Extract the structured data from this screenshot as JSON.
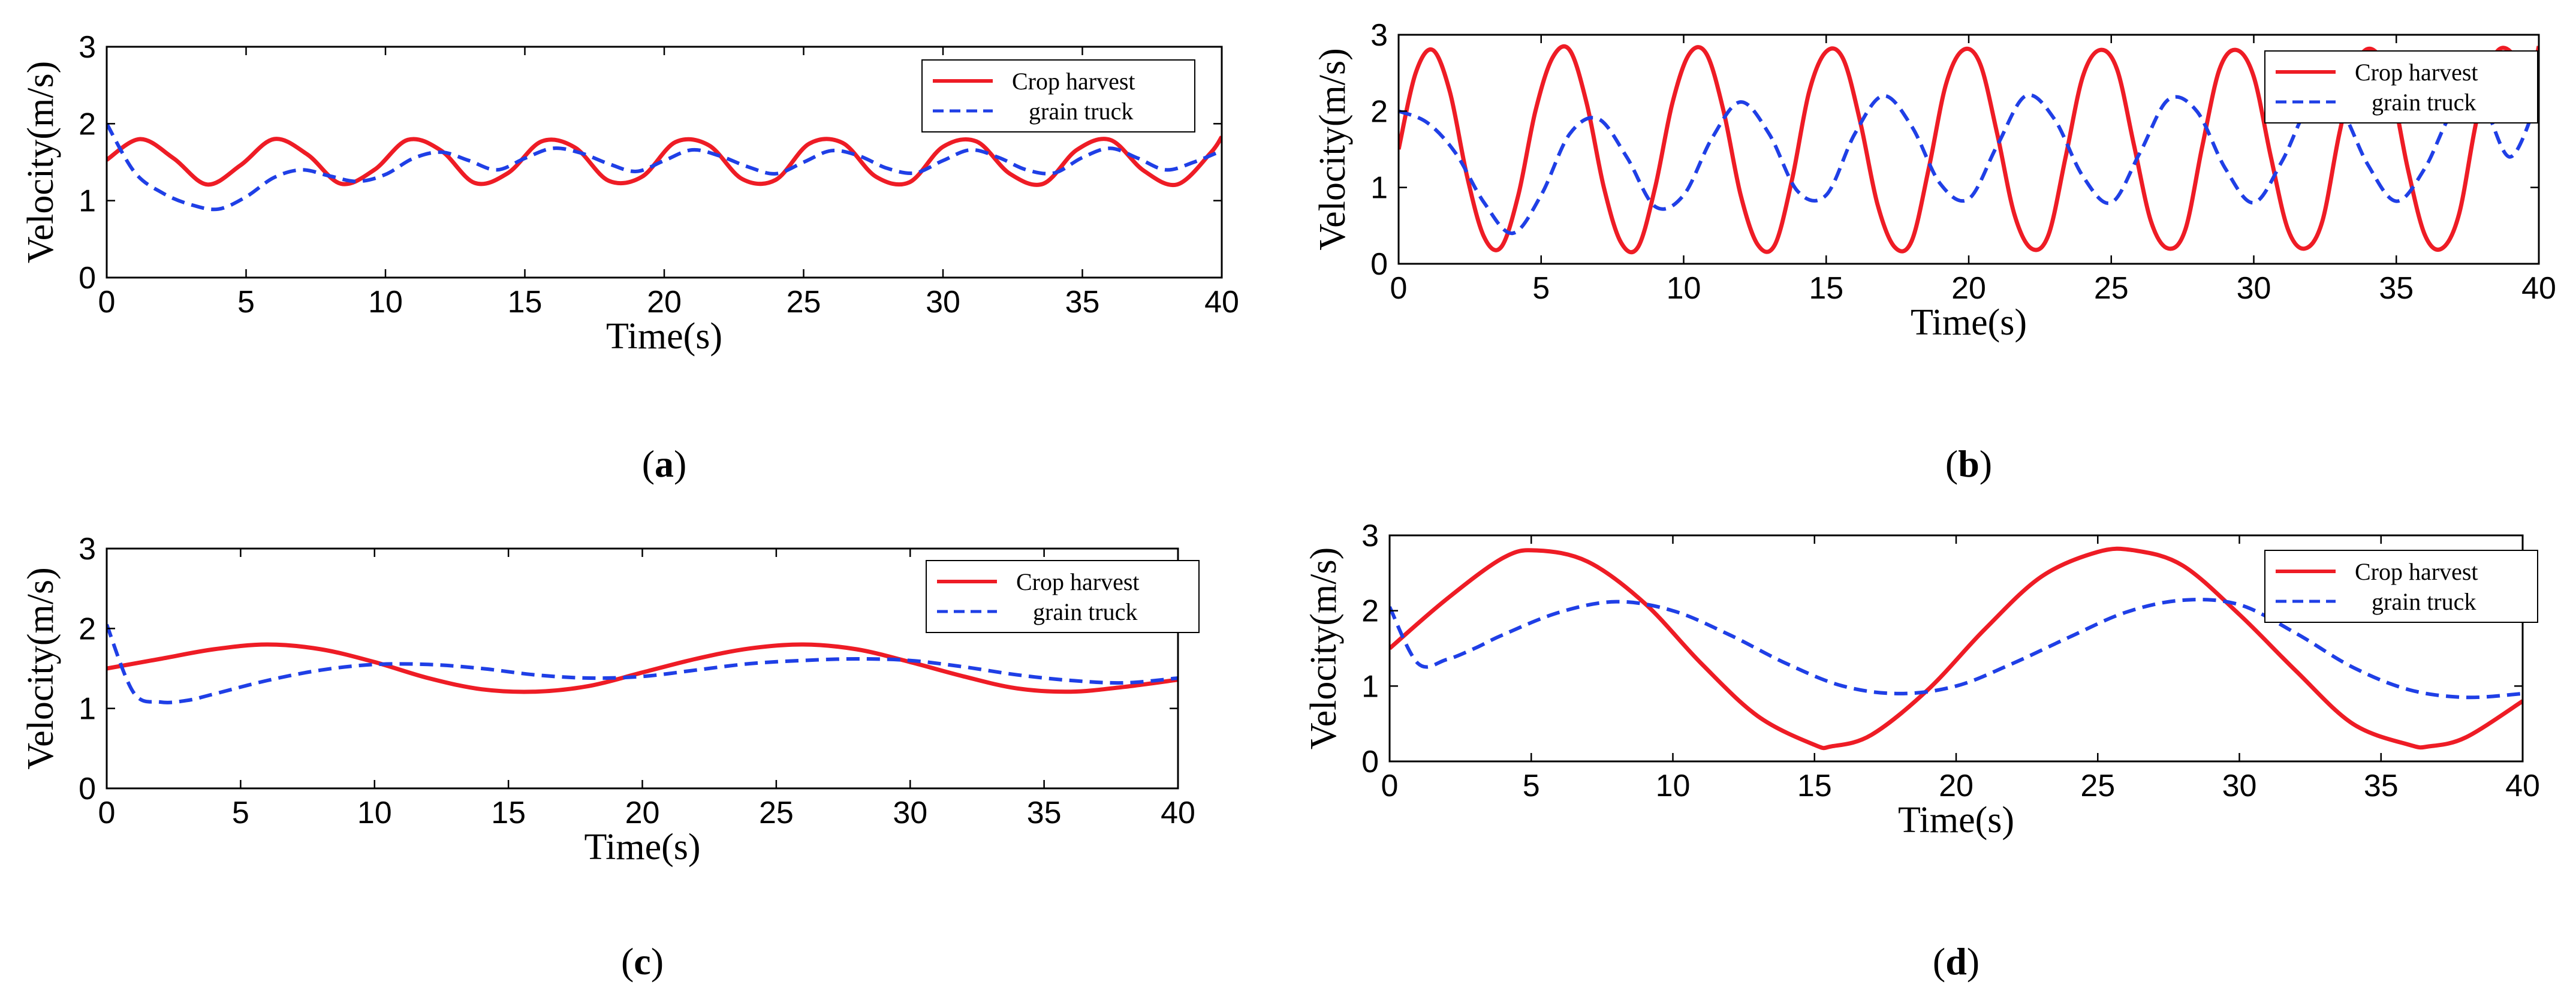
{
  "colors": {
    "crop": "#ee1c25",
    "truck": "#1f3fe6",
    "axis": "#000000"
  },
  "chart_data": [
    {
      "type": "line",
      "caption_letter": "a",
      "xlabel": "Time(s)",
      "ylabel": "Velocity(m/s)",
      "xlim": [
        0,
        40
      ],
      "ylim": [
        0,
        3
      ],
      "xticks": [
        0,
        5,
        10,
        15,
        20,
        25,
        30,
        35,
        40
      ],
      "yticks": [
        0,
        1,
        2,
        3
      ],
      "legend_position": "top-right",
      "series": [
        {
          "name": "Crop harvest",
          "x": [
            0,
            1.2,
            2.4,
            3.6,
            4.8,
            6.0,
            7.2,
            8.4,
            9.6,
            10.8,
            12.0,
            13.2,
            14.4,
            15.6,
            16.8,
            18.0,
            19.2,
            20.4,
            21.6,
            22.8,
            24.0,
            25.2,
            26.4,
            27.6,
            28.8,
            30.0,
            31.2,
            32.4,
            33.6,
            34.8,
            36.0,
            37.2,
            38.4,
            39.6,
            40
          ],
          "y": [
            1.53,
            1.8,
            1.55,
            1.21,
            1.46,
            1.8,
            1.6,
            1.22,
            1.4,
            1.79,
            1.65,
            1.23,
            1.36,
            1.77,
            1.69,
            1.26,
            1.31,
            1.76,
            1.72,
            1.28,
            1.27,
            1.74,
            1.75,
            1.31,
            1.24,
            1.7,
            1.77,
            1.35,
            1.22,
            1.66,
            1.79,
            1.39,
            1.21,
            1.62,
            1.83
          ]
        },
        {
          "name": "grain truck",
          "x": [
            0,
            1,
            2,
            3,
            4,
            5,
            6,
            7,
            8,
            9,
            10,
            11,
            12,
            13,
            14,
            15,
            16,
            17,
            18,
            19,
            20,
            21,
            22,
            23,
            24,
            25,
            26,
            27,
            28,
            29,
            30,
            31,
            32,
            33,
            34,
            35,
            36,
            37,
            38,
            39,
            40
          ],
          "y": [
            2.0,
            1.37,
            1.1,
            0.95,
            0.89,
            1.05,
            1.3,
            1.4,
            1.32,
            1.25,
            1.34,
            1.55,
            1.63,
            1.52,
            1.4,
            1.55,
            1.68,
            1.62,
            1.48,
            1.38,
            1.52,
            1.66,
            1.58,
            1.44,
            1.35,
            1.5,
            1.65,
            1.58,
            1.42,
            1.36,
            1.52,
            1.66,
            1.56,
            1.4,
            1.36,
            1.56,
            1.68,
            1.55,
            1.4,
            1.5,
            1.65
          ]
        }
      ]
    },
    {
      "type": "line",
      "caption_letter": "b",
      "xlabel": "Time(s)",
      "ylabel": "Velocity(m/s)",
      "xlim": [
        0,
        40
      ],
      "ylim": [
        0,
        3
      ],
      "xticks": [
        0,
        5,
        10,
        15,
        20,
        25,
        30,
        35,
        40
      ],
      "yticks": [
        0,
        1,
        2,
        3
      ],
      "legend_position": "top-right",
      "series": [
        {
          "name": "Crop harvest",
          "x": [
            0,
            0.6,
            1.2,
            1.8,
            2.4,
            3.0,
            3.6,
            4.2,
            4.8,
            5.4,
            6.0,
            6.6,
            7.2,
            7.8,
            8.4,
            9.0,
            9.6,
            10.2,
            10.8,
            11.4,
            12.0,
            12.6,
            13.2,
            13.8,
            14.4,
            15.0,
            15.6,
            16.2,
            16.8,
            17.4,
            18.0,
            18.6,
            19.2,
            19.8,
            20.4,
            21.0,
            21.6,
            22.2,
            22.8,
            23.4,
            24.0,
            24.6,
            25.2,
            25.8,
            26.4,
            27.0,
            27.6,
            28.2,
            28.8,
            29.4,
            30.0,
            30.6,
            31.2,
            31.8,
            32.4,
            33.0,
            33.6,
            34.2,
            34.8,
            35.4,
            36.0,
            36.6,
            37.2,
            37.8,
            38.4,
            39.0,
            39.6,
            40
          ],
          "y": [
            1.5,
            2.5,
            2.8,
            2.25,
            1.15,
            0.35,
            0.22,
            0.9,
            2.0,
            2.7,
            2.8,
            2.1,
            1.0,
            0.28,
            0.22,
            1.0,
            2.1,
            2.75,
            2.75,
            2.0,
            0.9,
            0.25,
            0.25,
            1.1,
            2.25,
            2.78,
            2.68,
            1.85,
            0.78,
            0.22,
            0.3,
            1.25,
            2.35,
            2.8,
            2.62,
            1.7,
            0.65,
            0.2,
            0.38,
            1.4,
            2.45,
            2.8,
            2.55,
            1.55,
            0.55,
            0.2,
            0.45,
            1.55,
            2.55,
            2.8,
            2.45,
            1.4,
            0.45,
            0.2,
            0.55,
            1.7,
            2.62,
            2.8,
            2.35,
            1.25,
            0.38,
            0.2,
            0.65,
            1.85,
            2.7,
            2.78,
            2.25,
            2.85
          ]
        },
        {
          "name": "grain truck",
          "x": [
            0,
            1,
            2,
            3,
            4,
            5,
            6,
            7,
            8,
            9,
            10,
            11,
            12,
            13,
            14,
            15,
            16,
            17,
            18,
            19,
            20,
            21,
            22,
            23,
            24,
            25,
            26,
            27,
            28,
            29,
            30,
            31,
            32,
            33,
            34,
            35,
            36,
            37,
            38,
            39,
            40
          ],
          "y": [
            2.0,
            1.85,
            1.45,
            0.8,
            0.4,
            0.9,
            1.7,
            1.9,
            1.4,
            0.75,
            0.9,
            1.65,
            2.12,
            1.7,
            0.95,
            0.9,
            1.7,
            2.2,
            1.8,
            1.05,
            0.85,
            1.55,
            2.2,
            1.9,
            1.15,
            0.8,
            1.45,
            2.15,
            2.0,
            1.25,
            0.8,
            1.35,
            2.1,
            2.05,
            1.3,
            0.82,
            1.25,
            2.0,
            2.1,
            1.4,
            2.2
          ]
        }
      ]
    },
    {
      "type": "line",
      "caption_letter": "c",
      "xlabel": "Time(s)",
      "ylabel": "Velocity(m/s)",
      "xlim": [
        0,
        40
      ],
      "ylim": [
        0,
        3
      ],
      "xticks": [
        0,
        5,
        10,
        15,
        20,
        25,
        30,
        35,
        40
      ],
      "yticks": [
        0,
        1,
        2,
        3
      ],
      "legend_position": "top-right",
      "series": [
        {
          "name": "Crop harvest",
          "x": [
            0,
            2,
            4,
            6,
            8,
            10,
            12,
            14,
            16,
            18,
            20,
            22,
            24,
            26,
            28,
            30,
            32,
            34,
            36,
            38,
            40
          ],
          "y": [
            1.5,
            1.62,
            1.74,
            1.8,
            1.74,
            1.58,
            1.38,
            1.24,
            1.21,
            1.28,
            1.45,
            1.62,
            1.75,
            1.8,
            1.74,
            1.58,
            1.4,
            1.25,
            1.21,
            1.27,
            1.36
          ]
        },
        {
          "name": "grain truck",
          "x": [
            0,
            1,
            2,
            3,
            4,
            6,
            8,
            10,
            12,
            14,
            16,
            18,
            20,
            22,
            24,
            26,
            28,
            30,
            32,
            34,
            36,
            38,
            40
          ],
          "y": [
            2.05,
            1.2,
            1.08,
            1.1,
            1.18,
            1.35,
            1.48,
            1.55,
            1.55,
            1.5,
            1.42,
            1.38,
            1.4,
            1.48,
            1.56,
            1.6,
            1.62,
            1.6,
            1.52,
            1.42,
            1.35,
            1.32,
            1.38
          ]
        }
      ]
    },
    {
      "type": "line",
      "caption_letter": "d",
      "xlabel": "Time(s)",
      "ylabel": "Velocity(m/s)",
      "xlim": [
        0,
        40
      ],
      "ylim": [
        0,
        3
      ],
      "xticks": [
        0,
        5,
        10,
        15,
        20,
        25,
        30,
        35,
        40
      ],
      "yticks": [
        0,
        1,
        2,
        3
      ],
      "legend_position": "top-right",
      "series": [
        {
          "name": "Crop harvest",
          "x": [
            0,
            2,
            4,
            5.2,
            7,
            9,
            11,
            13,
            15,
            15.6,
            17,
            19,
            21,
            23,
            25,
            26.3,
            28,
            30,
            32,
            34,
            36,
            36.7,
            38,
            40
          ],
          "y": [
            1.5,
            2.15,
            2.7,
            2.8,
            2.65,
            2.1,
            1.3,
            0.6,
            0.22,
            0.2,
            0.35,
            0.95,
            1.75,
            2.45,
            2.78,
            2.8,
            2.6,
            1.95,
            1.2,
            0.5,
            0.22,
            0.2,
            0.32,
            0.8
          ]
        },
        {
          "name": "grain truck",
          "x": [
            0,
            1,
            2,
            3,
            4,
            6,
            8,
            10,
            12,
            14,
            16,
            18,
            20,
            22,
            24,
            26,
            28,
            30,
            32,
            34,
            36,
            38,
            40
          ],
          "y": [
            2.05,
            1.3,
            1.35,
            1.5,
            1.68,
            1.98,
            2.12,
            2.0,
            1.68,
            1.3,
            1.0,
            0.9,
            1.0,
            1.3,
            1.65,
            1.98,
            2.14,
            2.08,
            1.7,
            1.25,
            0.95,
            0.85,
            0.9
          ]
        }
      ]
    }
  ]
}
